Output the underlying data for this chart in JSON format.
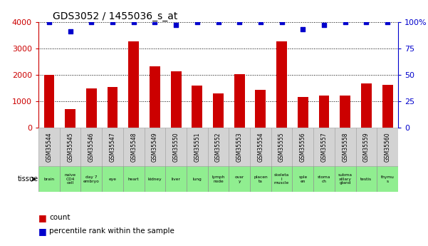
{
  "title": "GDS3052 / 1455036_s_at",
  "gsm_ids": [
    "GSM35544",
    "GSM35545",
    "GSM35546",
    "GSM35547",
    "GSM35548",
    "GSM35549",
    "GSM35550",
    "GSM35551",
    "GSM35552",
    "GSM35553",
    "GSM35554",
    "GSM35555",
    "GSM35556",
    "GSM35557",
    "GSM35558",
    "GSM35559",
    "GSM35560"
  ],
  "counts": [
    2000,
    700,
    1480,
    1530,
    3280,
    2330,
    2130,
    1600,
    1300,
    2020,
    1430,
    3280,
    1150,
    1220,
    1200,
    1660,
    1610
  ],
  "percentiles": [
    100,
    91,
    100,
    100,
    100,
    100,
    97,
    100,
    100,
    100,
    100,
    100,
    93,
    97,
    100,
    100,
    100
  ],
  "tissues": [
    "brain",
    "naive\nCD4\ncell",
    "day 7\nembryо",
    "eye",
    "heart",
    "kidney",
    "liver",
    "lung",
    "lymph\nnode",
    "ovar\ny",
    "placen\nta",
    "skeleta\nl\nmuscle",
    "sple\nen",
    "stoma\nch",
    "subma\nxillary\ngland",
    "testis",
    "thymu\ns"
  ],
  "tissue_colors": [
    "#90ee90",
    "#90ee90",
    "#90ee90",
    "#90ee90",
    "#90ee90",
    "#90ee90",
    "#90ee90",
    "#90ee90",
    "#90ee90",
    "#90ee90",
    "#90ee90",
    "#90ee90",
    "#90ee90",
    "#90ee90",
    "#90ee90",
    "#90ee90",
    "#90ee90"
  ],
  "bar_color": "#cc0000",
  "dot_color": "#0000cc",
  "ylim_left": [
    0,
    4000
  ],
  "ylim_right": [
    0,
    100
  ],
  "yticks_left": [
    0,
    1000,
    2000,
    3000,
    4000
  ],
  "yticks_right": [
    0,
    25,
    50,
    75,
    100
  ],
  "yticklabels_right": [
    "0",
    "25",
    "50",
    "75",
    "100%"
  ],
  "bg_color": "#ffffff",
  "bar_color_hex": "#cc0000",
  "dot_color_hex": "#0000cc",
  "bar_width": 0.5,
  "dot_size": 25,
  "left_tick_color": "#cc0000",
  "right_tick_color": "#0000cc",
  "tissue_row_bg": "#90ee90",
  "gsm_label_bg": "#d3d3d3"
}
